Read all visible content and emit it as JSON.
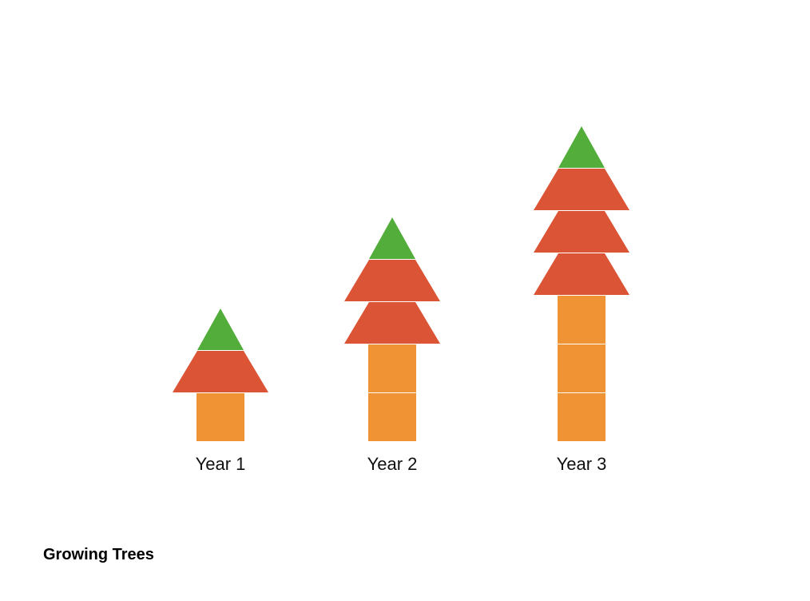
{
  "title": "Growing Trees",
  "trees": [
    {
      "label": "Year 1",
      "trunk_blocks": 1,
      "crown_layers": 1
    },
    {
      "label": "Year 2",
      "trunk_blocks": 2,
      "crown_layers": 2
    },
    {
      "label": "Year 3",
      "trunk_blocks": 3,
      "crown_layers": 3
    }
  ]
}
